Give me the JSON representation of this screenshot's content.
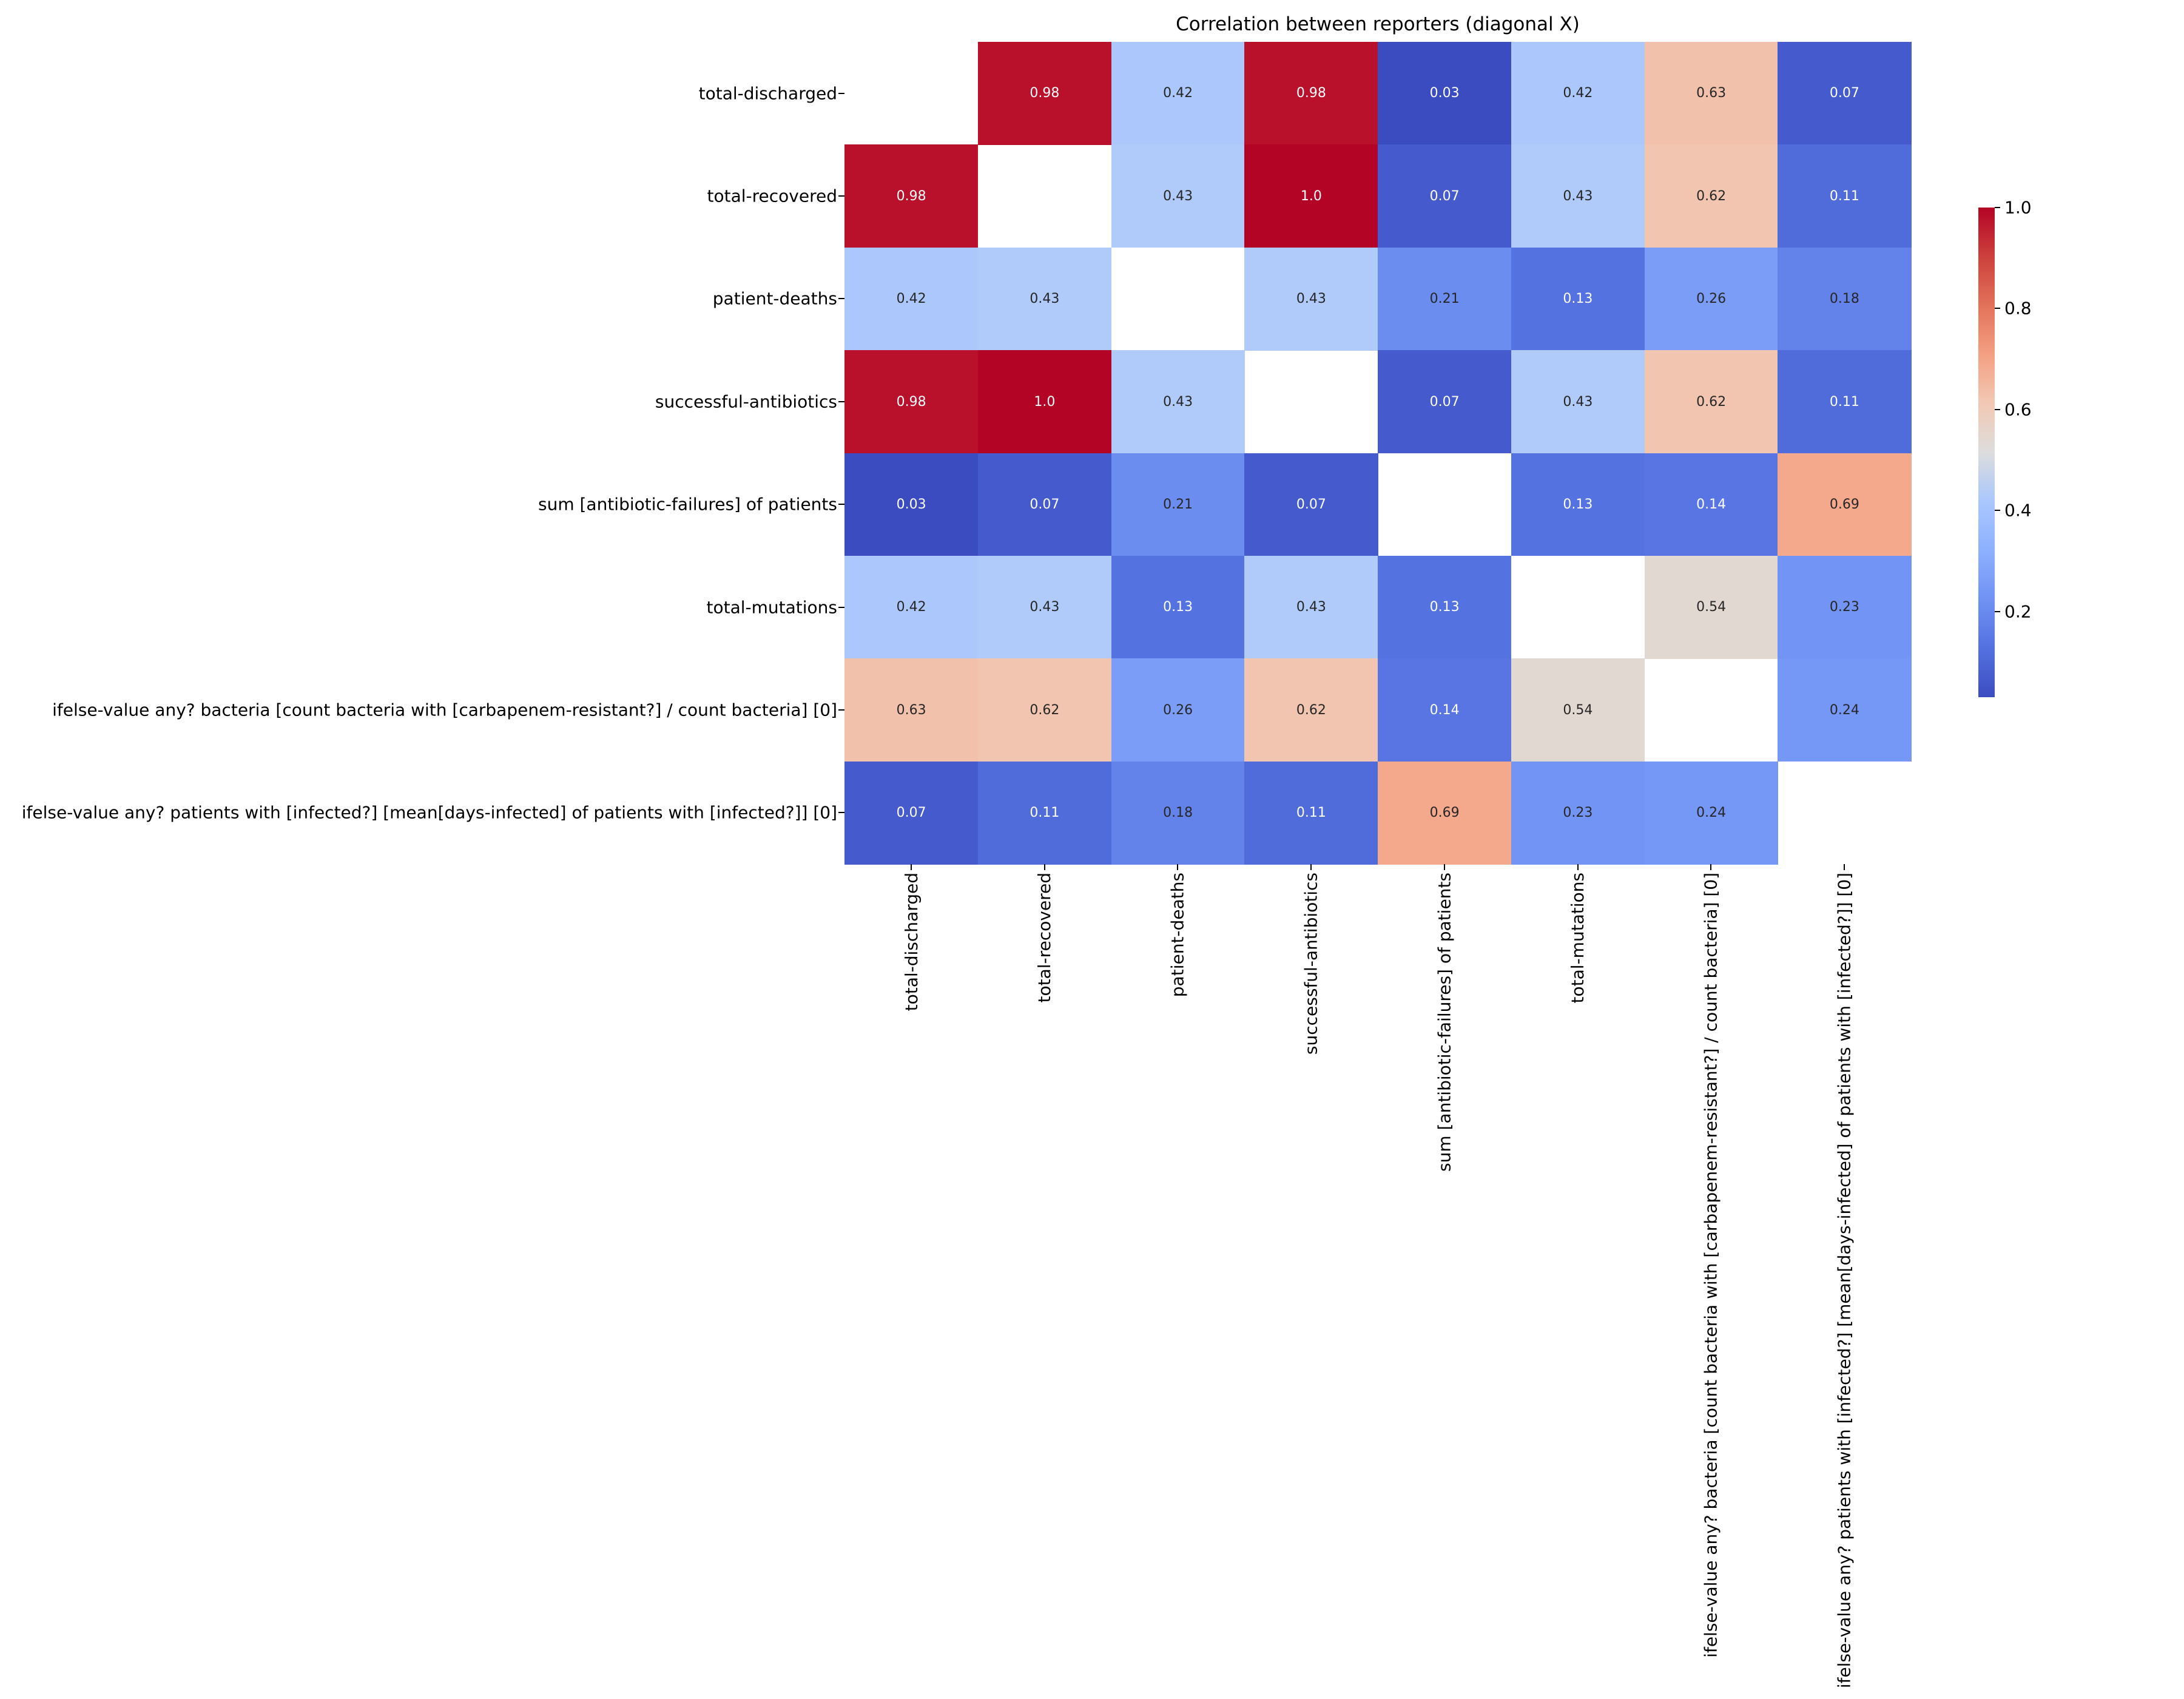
{
  "chart_data": {
    "type": "heatmap",
    "title": "Correlation between reporters (diagonal X)",
    "labels": [
      "total-discharged",
      "total-recovered",
      "patient-deaths",
      "successful-antibiotics",
      "sum [antibiotic-failures] of patients",
      "total-mutations",
      "ifelse-value any? bacteria [count bacteria with [carbapenem-resistant?] / count bacteria] [0]",
      "ifelse-value any? patients with [infected?] [mean[days-infected] of patients with [infected?]] [0]"
    ],
    "values": [
      [
        null,
        0.98,
        0.42,
        0.98,
        0.03,
        0.42,
        0.63,
        0.07
      ],
      [
        0.98,
        null,
        0.43,
        1.0,
        0.07,
        0.43,
        0.62,
        0.11
      ],
      [
        0.42,
        0.43,
        null,
        0.43,
        0.21,
        0.13,
        0.26,
        0.18
      ],
      [
        0.98,
        1.0,
        0.43,
        null,
        0.07,
        0.43,
        0.62,
        0.11
      ],
      [
        0.03,
        0.07,
        0.21,
        0.07,
        null,
        0.13,
        0.14,
        0.69
      ],
      [
        0.42,
        0.43,
        0.13,
        0.43,
        0.13,
        null,
        0.54,
        0.23
      ],
      [
        0.63,
        0.62,
        0.26,
        0.62,
        0.14,
        0.54,
        null,
        0.24
      ],
      [
        0.07,
        0.11,
        0.18,
        0.11,
        0.69,
        0.23,
        0.24,
        null
      ]
    ],
    "annotations": [
      [
        "",
        "0.98",
        "0.42",
        "0.98",
        "0.03",
        "0.42",
        "0.63",
        "0.07"
      ],
      [
        "0.98",
        "",
        "0.43",
        "1.0",
        "0.07",
        "0.43",
        "0.62",
        "0.11"
      ],
      [
        "0.42",
        "0.43",
        "",
        "0.43",
        "0.21",
        "0.13",
        "0.26",
        "0.18"
      ],
      [
        "0.98",
        "1.0",
        "0.43",
        "",
        "0.07",
        "0.43",
        "0.62",
        "0.11"
      ],
      [
        "0.03",
        "0.07",
        "0.21",
        "0.07",
        "",
        "0.13",
        "0.14",
        "0.69"
      ],
      [
        "0.42",
        "0.43",
        "0.13",
        "0.43",
        "0.13",
        "",
        "0.54",
        "0.23"
      ],
      [
        "0.63",
        "0.62",
        "0.26",
        "0.62",
        "0.14",
        "0.54",
        "",
        "0.24"
      ],
      [
        "0.07",
        "0.11",
        "0.18",
        "0.11",
        "0.69",
        "0.23",
        "0.24",
        ""
      ]
    ],
    "colormap": "coolwarm",
    "vmin": 0.03,
    "vmax": 1.0,
    "colorbar_ticks": [
      "0.2",
      "0.4",
      "0.6",
      "0.8",
      "1.0"
    ],
    "diagonal": "masked"
  }
}
